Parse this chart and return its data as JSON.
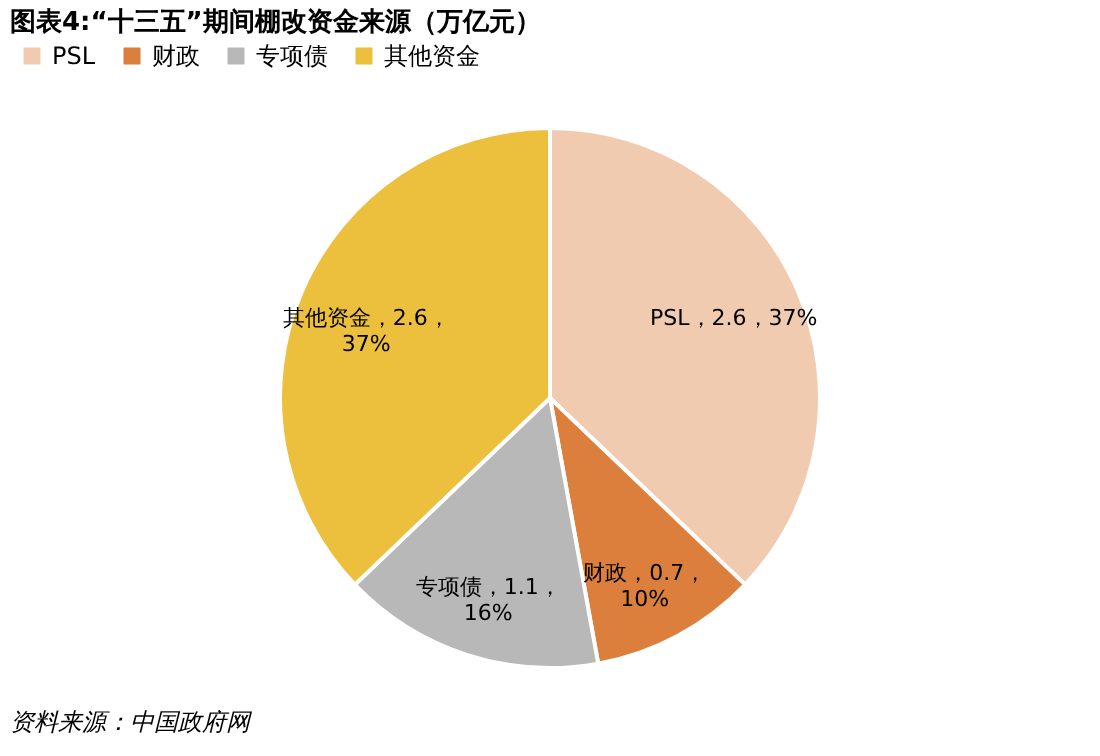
{
  "chart_data": {
    "type": "pie",
    "title": "图表4:“十三五”期间棚改资金来源（万亿元）",
    "categories": [
      "PSL",
      "财政",
      "专项债",
      "其他资金"
    ],
    "values": [
      2.6,
      0.7,
      1.1,
      2.6
    ],
    "colors": [
      "#f0cbb0",
      "#dc7f3c",
      "#b8b8b8",
      "#ecc03c"
    ],
    "value_labels": [
      "PSL，2.6，37%",
      "财政，0.7，\n10%",
      "专项债，1.1，\n16%",
      "其他资金，2.6，\n37%"
    ],
    "legend": "top",
    "annotations": [
      "资料来源：中国政府网"
    ]
  }
}
